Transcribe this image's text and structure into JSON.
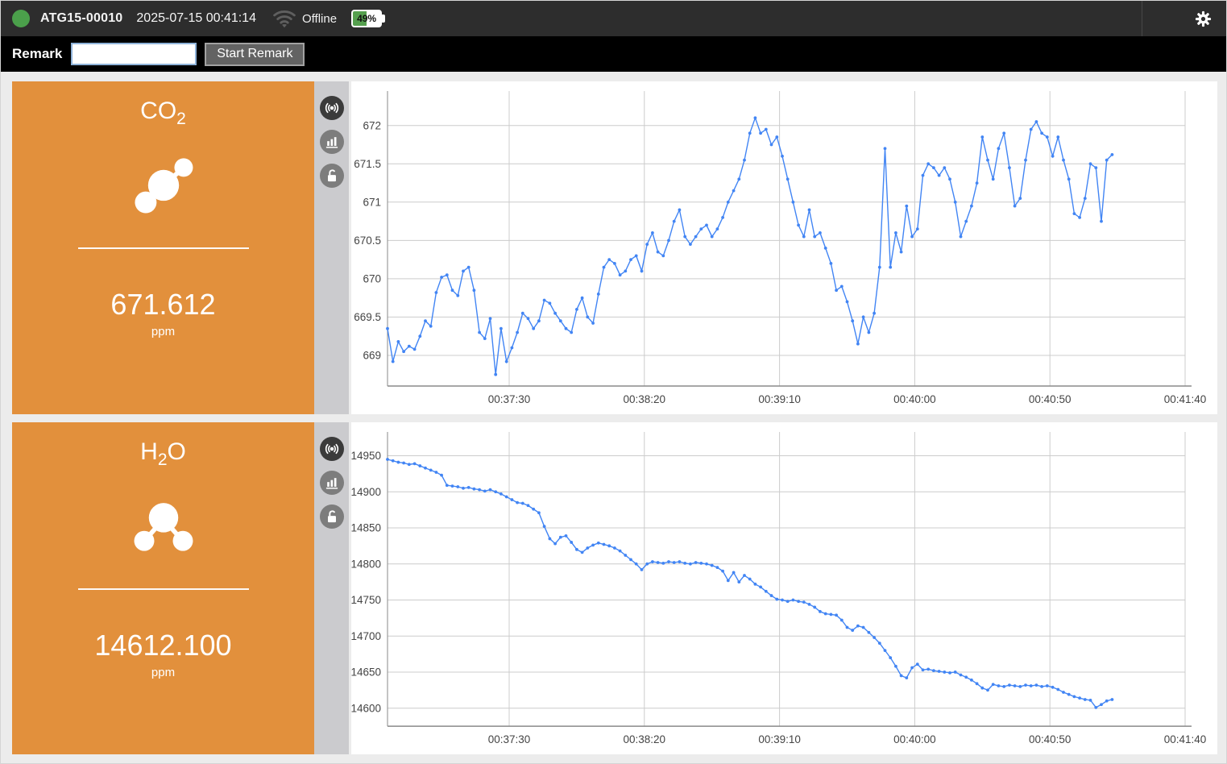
{
  "topbar": {
    "device_id": "ATG15-00010",
    "timestamp": "2025-07-15 00:41:14",
    "connection_status": "Offline",
    "battery_label": "49%",
    "battery_pct": 49
  },
  "remark": {
    "label": "Remark",
    "input_value": "",
    "button_label": "Start Remark"
  },
  "panels": [
    {
      "title_main": "CO",
      "title_sub": "2",
      "title_tail": "",
      "value": "671.612",
      "unit": "ppm",
      "color": "#e2903c"
    },
    {
      "title_main": "H",
      "title_sub": "2",
      "title_tail": "O",
      "value": "14612.100",
      "unit": "ppm",
      "color": "#e2903c"
    }
  ],
  "chart_data": [
    {
      "type": "line",
      "name": "CO2 (ppm)",
      "color": "#4285f4",
      "grid": true,
      "legend": "none",
      "x_domain": [
        "00:36:45",
        "00:41:40"
      ],
      "x_ticks": [
        "00:37:30",
        "00:38:20",
        "00:39:10",
        "00:40:00",
        "00:40:50",
        "00:41:40"
      ],
      "y_domain": [
        668.6,
        672.45
      ],
      "y_ticks": [
        672,
        671.5,
        671,
        670.5,
        670,
        669.5,
        669
      ],
      "series": {
        "start": "00:36:45",
        "step_s": 2,
        "values": [
          669.35,
          668.92,
          669.18,
          669.05,
          669.12,
          669.08,
          669.25,
          669.45,
          669.38,
          669.82,
          670.02,
          670.05,
          669.85,
          669.78,
          670.1,
          670.15,
          669.85,
          669.3,
          669.22,
          669.48,
          668.75,
          669.35,
          668.92,
          669.1,
          669.3,
          669.55,
          669.48,
          669.35,
          669.45,
          669.72,
          669.68,
          669.55,
          669.45,
          669.35,
          669.3,
          669.6,
          669.75,
          669.5,
          669.42,
          669.8,
          670.15,
          670.25,
          670.2,
          670.05,
          670.1,
          670.25,
          670.3,
          670.1,
          670.45,
          670.6,
          670.35,
          670.3,
          670.5,
          670.75,
          670.9,
          670.55,
          670.45,
          670.55,
          670.65,
          670.7,
          670.55,
          670.65,
          670.8,
          671.0,
          671.15,
          671.3,
          671.55,
          671.9,
          672.1,
          671.9,
          671.95,
          671.75,
          671.85,
          671.6,
          671.3,
          671.0,
          670.7,
          670.55,
          670.9,
          670.55,
          670.6,
          670.4,
          670.2,
          669.85,
          669.9,
          669.7,
          669.45,
          669.15,
          669.5,
          669.3,
          669.55,
          670.15,
          671.7,
          670.15,
          670.6,
          670.35,
          670.95,
          670.55,
          670.65,
          671.35,
          671.5,
          671.45,
          671.35,
          671.45,
          671.3,
          671.0,
          670.55,
          670.75,
          670.95,
          671.25,
          671.85,
          671.55,
          671.3,
          671.7,
          671.9,
          671.45,
          670.95,
          671.05,
          671.55,
          671.95,
          672.05,
          671.9,
          671.85,
          671.6,
          671.85,
          671.55,
          671.3,
          670.85,
          670.8,
          671.05,
          671.5,
          671.45,
          670.75,
          671.55,
          671.62
        ]
      }
    },
    {
      "type": "line",
      "name": "H2O (ppm)",
      "color": "#4285f4",
      "grid": true,
      "legend": "none",
      "x_domain": [
        "00:36:45",
        "00:41:40"
      ],
      "x_ticks": [
        "00:37:30",
        "00:38:20",
        "00:39:10",
        "00:40:00",
        "00:40:50",
        "00:41:40"
      ],
      "y_domain": [
        14575,
        14983
      ],
      "y_ticks": [
        14950,
        14900,
        14850,
        14800,
        14750,
        14700,
        14650,
        14600
      ],
      "series": {
        "start": "00:36:45",
        "step_s": 2,
        "values": [
          14945,
          14943,
          14941,
          14940,
          14938,
          14939,
          14936,
          14933,
          14930,
          14927,
          14923,
          14909,
          14908,
          14907,
          14905,
          14906,
          14904,
          14903,
          14901,
          14903,
          14900,
          14897,
          14893,
          14889,
          14885,
          14884,
          14881,
          14876,
          14871,
          14852,
          14835,
          14828,
          14837,
          14839,
          14830,
          14820,
          14816,
          14822,
          14826,
          14829,
          14827,
          14825,
          14822,
          14818,
          14812,
          14806,
          14800,
          14792,
          14800,
          14803,
          14802,
          14801,
          14803,
          14802,
          14803,
          14801,
          14800,
          14802,
          14801,
          14800,
          14798,
          14795,
          14790,
          14777,
          14788,
          14775,
          14784,
          14779,
          14772,
          14768,
          14762,
          14756,
          14751,
          14750,
          14748,
          14750,
          14748,
          14747,
          14744,
          14740,
          14734,
          14731,
          14730,
          14729,
          14722,
          14712,
          14708,
          14714,
          14712,
          14705,
          14698,
          14690,
          14680,
          14670,
          14658,
          14645,
          14642,
          14656,
          14661,
          14653,
          14654,
          14652,
          14651,
          14650,
          14649,
          14650,
          14646,
          14643,
          14639,
          14634,
          14628,
          14625,
          14633,
          14631,
          14630,
          14632,
          14631,
          14630,
          14632,
          14631,
          14632,
          14630,
          14631,
          14629,
          14626,
          14622,
          14619,
          14616,
          14614,
          14612,
          14611,
          14601,
          14605,
          14610,
          14612
        ]
      }
    }
  ]
}
